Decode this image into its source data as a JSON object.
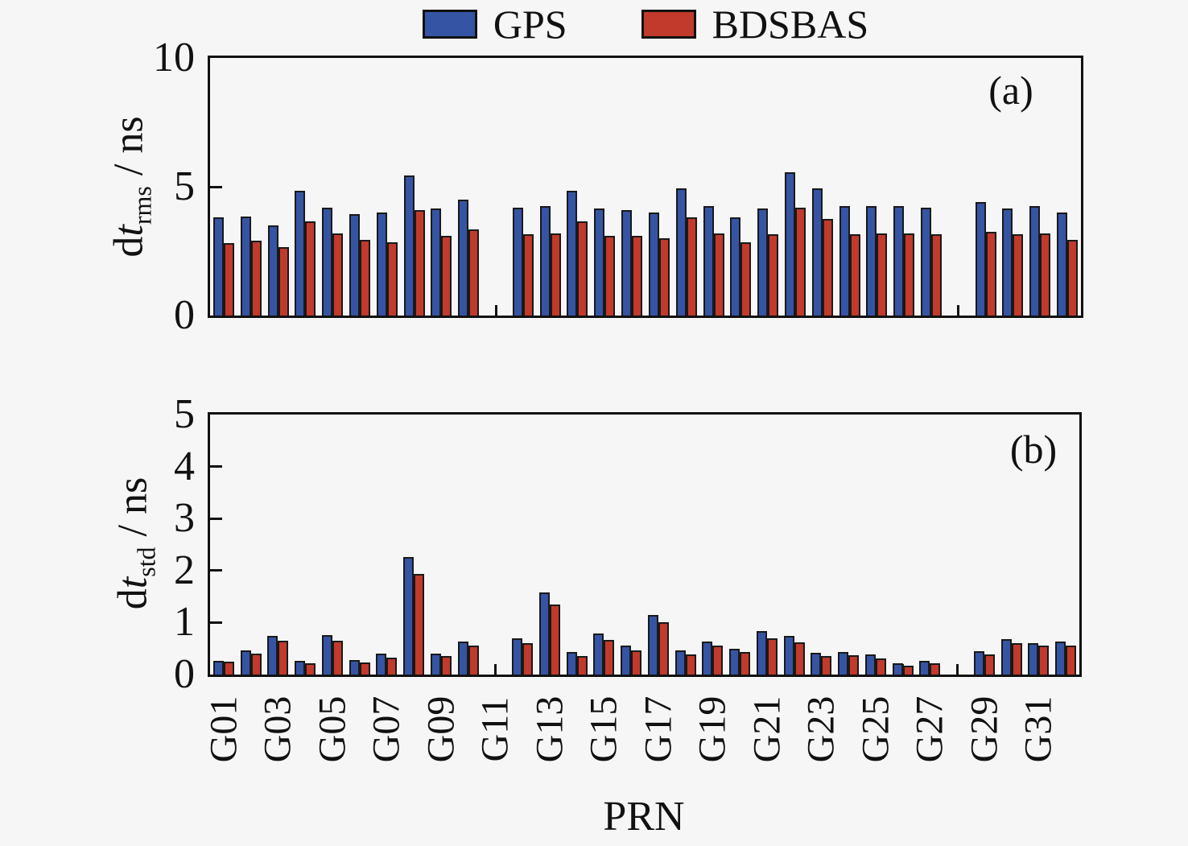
{
  "page": {
    "background": "#f6f6f6"
  },
  "legend": {
    "items": [
      {
        "label": "GPS",
        "color": "#3554a4"
      },
      {
        "label": "BDSBAS",
        "color": "#c13a2c"
      }
    ]
  },
  "xlabel": "PRN",
  "chart_data": [
    {
      "type": "bar",
      "panel_label": "(a)",
      "ylabel": {
        "prefix": "d",
        "italic": "t",
        "sub": "rms",
        "suffix": " / ns"
      },
      "ylim": [
        0,
        10
      ],
      "yticks": [
        0,
        5,
        10
      ],
      "grid": false,
      "legend_position": "top-center",
      "categories": [
        "G01",
        "G02",
        "G03",
        "G04",
        "G05",
        "G06",
        "G07",
        "G08",
        "G09",
        "G10",
        "G11",
        "G12",
        "G13",
        "G14",
        "G15",
        "G16",
        "G17",
        "G18",
        "G19",
        "G20",
        "G21",
        "G22",
        "G23",
        "G24",
        "G25",
        "G26",
        "G27",
        "G28",
        "G29",
        "G30",
        "G31",
        "G32"
      ],
      "xtick_labels": [
        "G01",
        "G03",
        "G05",
        "G07",
        "G09",
        "G11",
        "G13",
        "G15",
        "G17",
        "G19",
        "G21",
        "G23",
        "G25",
        "G27",
        "G29",
        "G31"
      ],
      "series": [
        {
          "name": "GPS",
          "color": "#3554a4",
          "values": [
            3.8,
            3.85,
            3.5,
            4.85,
            4.2,
            3.95,
            4.0,
            5.45,
            4.15,
            4.5,
            null,
            4.2,
            4.25,
            4.85,
            4.15,
            4.1,
            4.0,
            4.95,
            4.25,
            3.8,
            4.15,
            5.55,
            4.95,
            4.25,
            4.25,
            4.25,
            4.2,
            null,
            4.4,
            4.15,
            4.25,
            4.0
          ]
        },
        {
          "name": "BDSBAS",
          "color": "#c13a2c",
          "values": [
            2.8,
            2.9,
            2.65,
            3.65,
            3.2,
            2.95,
            2.85,
            4.1,
            3.1,
            3.35,
            null,
            3.15,
            3.2,
            3.65,
            3.1,
            3.1,
            3.0,
            3.8,
            3.2,
            2.85,
            3.15,
            4.2,
            3.75,
            3.15,
            3.2,
            3.2,
            3.15,
            null,
            3.25,
            3.15,
            3.2,
            2.95
          ]
        }
      ]
    },
    {
      "type": "bar",
      "panel_label": "(b)",
      "ylabel": {
        "prefix": "d",
        "italic": "t",
        "sub": "std",
        "suffix": " / ns"
      },
      "ylim": [
        0,
        5
      ],
      "yticks": [
        0,
        1,
        2,
        3,
        4,
        5
      ],
      "grid": false,
      "categories": [
        "G01",
        "G02",
        "G03",
        "G04",
        "G05",
        "G06",
        "G07",
        "G08",
        "G09",
        "G10",
        "G11",
        "G12",
        "G13",
        "G14",
        "G15",
        "G16",
        "G17",
        "G18",
        "G19",
        "G20",
        "G21",
        "G22",
        "G23",
        "G24",
        "G25",
        "G26",
        "G27",
        "G28",
        "G29",
        "G30",
        "G31",
        "G32"
      ],
      "xtick_labels": [
        "G01",
        "G03",
        "G05",
        "G07",
        "G09",
        "G11",
        "G13",
        "G15",
        "G17",
        "G19",
        "G21",
        "G23",
        "G25",
        "G27",
        "G29",
        "G31"
      ],
      "series": [
        {
          "name": "GPS",
          "color": "#3554a4",
          "values": [
            0.27,
            0.46,
            0.75,
            0.27,
            0.76,
            0.28,
            0.4,
            2.26,
            0.4,
            0.64,
            null,
            0.69,
            1.58,
            0.43,
            0.79,
            0.55,
            1.14,
            0.47,
            0.64,
            0.5,
            0.84,
            0.74,
            0.42,
            0.44,
            0.38,
            0.22,
            0.26,
            null,
            0.45,
            0.68,
            0.61,
            0.63
          ]
        },
        {
          "name": "BDSBAS",
          "color": "#c13a2c",
          "values": [
            0.25,
            0.4,
            0.65,
            0.22,
            0.65,
            0.23,
            0.33,
            1.93,
            0.35,
            0.55,
            null,
            0.6,
            1.35,
            0.36,
            0.67,
            0.46,
            1.0,
            0.39,
            0.55,
            0.43,
            0.7,
            0.62,
            0.36,
            0.37,
            0.31,
            0.17,
            0.22,
            null,
            0.39,
            0.61,
            0.55,
            0.55
          ]
        }
      ]
    }
  ]
}
